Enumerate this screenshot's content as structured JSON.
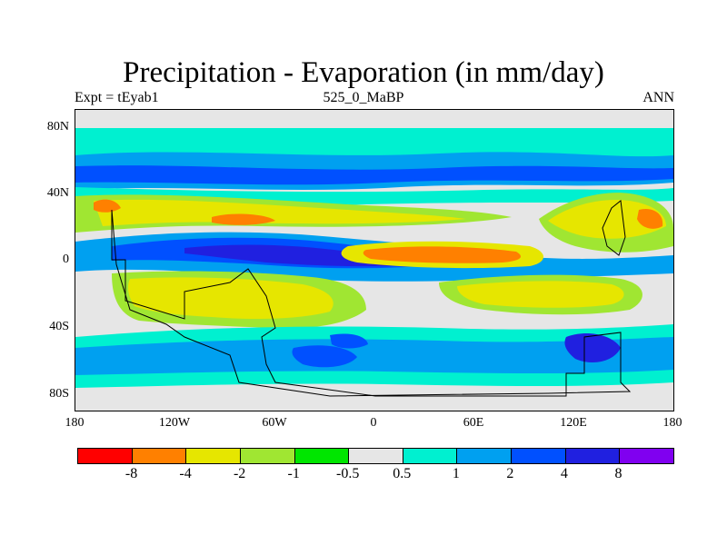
{
  "title": "Precipitation - Evaporation (in mm/day)",
  "subtitle_left": "Expt = tEyab1",
  "subtitle_center": "525_0_MaBP",
  "subtitle_right": "ANN",
  "lat_labels": [
    "80N",
    "40N",
    "0",
    "40S",
    "80S"
  ],
  "lon_labels": [
    "180",
    "120W",
    "60W",
    "0",
    "60E",
    "120E",
    "180"
  ],
  "colorbar": {
    "colors": [
      "#ff0000",
      "#ff8000",
      "#e6e600",
      "#a0e632",
      "#00e600",
      "#e6e6e6",
      "#00f0d0",
      "#00a0f0",
      "#0050ff",
      "#2020e0",
      "#8000f0"
    ],
    "labels": [
      "-8",
      "-4",
      "-2",
      "-1",
      "-0.5",
      "0.5",
      "1",
      "2",
      "4",
      "8"
    ]
  },
  "palette": {
    "neutral": "#e6e6e6",
    "cyan": "#00f0d0",
    "lightblue": "#00a0f0",
    "blue": "#0050ff",
    "darkblue": "#2020e0",
    "green": "#00e600",
    "yellowgreen": "#a0e632",
    "yellow": "#e6e600",
    "orange": "#ff8000"
  }
}
